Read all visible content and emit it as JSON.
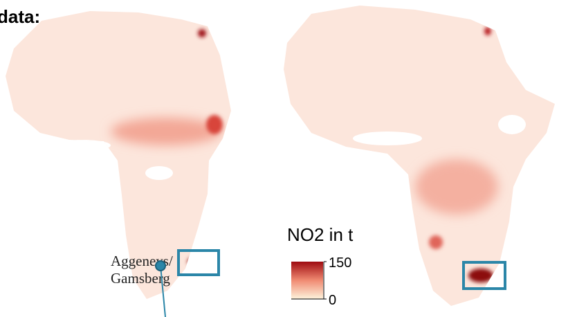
{
  "header_label": "data:",
  "annotation": {
    "lines": [
      "Aggeneys/",
      "Gamsberg"
    ]
  },
  "legend": {
    "title": "NO2 in t",
    "max": 150,
    "min": 0
  }
}
